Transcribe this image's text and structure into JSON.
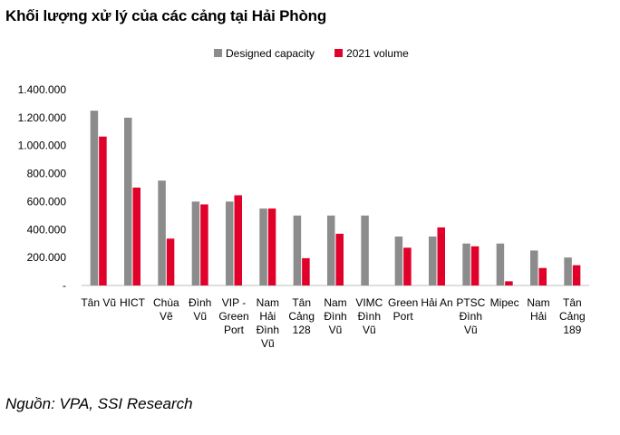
{
  "chart_data": {
    "type": "bar",
    "title": "Khối lượng xử lý của các cảng tại Hải Phòng",
    "source": "Nguồn: VPA, SSI Research",
    "legend_position": "top-center",
    "grid": false,
    "ylim": [
      0,
      1400000
    ],
    "y_ticks": [
      "-",
      "200.000",
      "400.000",
      "600.000",
      "800.000",
      "1.000.000",
      "1.200.000",
      "1.400.000"
    ],
    "categories": [
      [
        "Tân Vũ"
      ],
      [
        "HICT"
      ],
      [
        "Chùa",
        "Vẽ"
      ],
      [
        "Đình",
        "Vũ"
      ],
      [
        "VIP -",
        "Green",
        "Port"
      ],
      [
        "Nam",
        "Hải",
        "Đình",
        "Vũ"
      ],
      [
        "Tân",
        "Cảng",
        "128"
      ],
      [
        "Nam",
        "Đình",
        "Vũ"
      ],
      [
        "VIMC",
        "Đình",
        "Vũ"
      ],
      [
        "Green",
        "Port"
      ],
      [
        "Hải An"
      ],
      [
        "PTSC",
        "Đình",
        "Vũ"
      ],
      [
        "Mipec"
      ],
      [
        "Nam",
        "Hải"
      ],
      [
        "Tân",
        "Cảng",
        "189"
      ]
    ],
    "series": [
      {
        "name": "Designed capacity",
        "color": "#8c8c8c",
        "values": [
          1250000,
          1200000,
          750000,
          600000,
          600000,
          550000,
          500000,
          500000,
          500000,
          350000,
          350000,
          300000,
          300000,
          250000,
          200000
        ]
      },
      {
        "name": "2021 volume",
        "color": "#e0002a",
        "values": [
          1065000,
          700000,
          335000,
          580000,
          645000,
          550000,
          195000,
          370000,
          0,
          270000,
          415000,
          280000,
          30000,
          125000,
          145000
        ]
      }
    ]
  }
}
